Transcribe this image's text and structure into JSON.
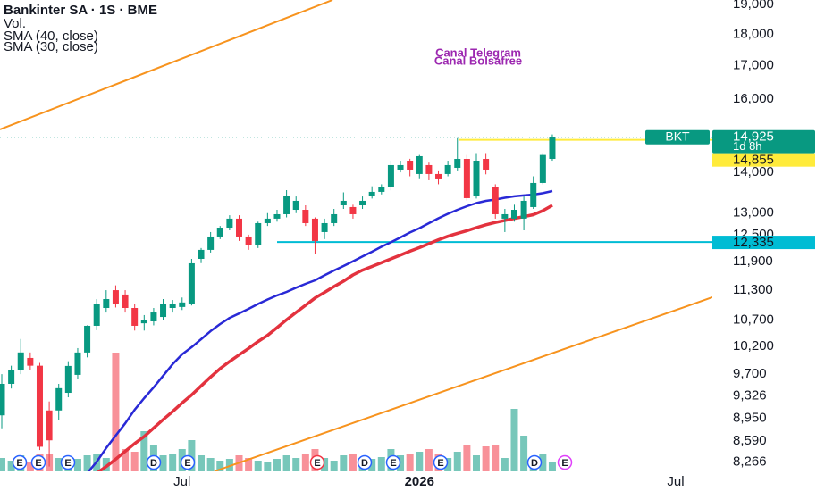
{
  "chart_data": {
    "type": "candlestick",
    "title": "Bankinter SA · 1S · BME",
    "annotations": [
      "Canal Telegram",
      "Canal Bolsafree"
    ],
    "categories": [
      null,
      null,
      null,
      null,
      null,
      null,
      null,
      null,
      null,
      null,
      null,
      null,
      null,
      null,
      null,
      null,
      null,
      null,
      null,
      "Jul",
      null,
      null,
      null,
      null,
      null,
      null,
      null,
      null,
      null,
      null,
      null,
      null,
      null,
      null,
      null,
      null,
      null,
      null,
      null,
      null,
      null,
      null,
      null,
      null,
      "2026",
      null,
      null,
      null,
      null,
      null,
      null,
      null,
      null,
      null,
      null,
      null,
      null,
      null,
      null,
      null,
      null,
      null,
      null,
      null,
      null,
      null,
      null,
      null,
      null,
      null,
      null,
      "Jul"
    ],
    "open": [
      9000,
      9530,
      9770,
      9990,
      9850,
      9080,
      9080,
      9376,
      9687,
      10089,
      10591,
      10940,
      11300,
      11211,
      10940,
      10640,
      10677,
      10763,
      10940,
      10960,
      11029,
      11962,
      12159,
      12458,
      12661,
      12870,
      12458,
      12257,
      12765,
      12870,
      12974,
      13079,
      13079,
      12870,
      12560,
      12765,
      13186,
      13144,
      13186,
      13403,
      13512,
      13621,
      14071,
      14301,
      13958,
      14186,
      13958,
      13958,
      14117,
      14347,
      13403,
      14347,
      13621,
      12870,
      12870,
      12870,
      13144,
      13733,
      14347,
      null,
      null,
      null,
      null,
      null,
      null,
      null,
      null,
      null,
      null,
      null,
      null,
      null
    ],
    "high": [
      9700,
      9850,
      10340,
      10090,
      9900,
      9230,
      9530,
      9930,
      10170,
      10600,
      11119,
      11300,
      11400,
      11300,
      11029,
      10800,
      10940,
      11119,
      11100,
      11150,
      11962,
      12200,
      12560,
      12700,
      12950,
      12950,
      12500,
      12800,
      13000,
      13079,
      13555,
      13400,
      13186,
      12900,
      12870,
      13100,
      13500,
      13200,
      13400,
      13650,
      13700,
      14301,
      14300,
      14350,
      14450,
      14250,
      14050,
      14300,
      14900,
      14450,
      14500,
      14500,
      13700,
      13100,
      13200,
      13400,
      13900,
      14500,
      15000,
      null,
      null,
      null,
      null,
      null,
      null,
      null,
      null,
      null,
      null,
      null,
      null,
      null
    ],
    "low": [
      8790,
      9450,
      9700,
      9770,
      8450,
      8200,
      8930,
      9300,
      9610,
      10000,
      10506,
      10850,
      10950,
      10850,
      10500,
      10500,
      10600,
      10700,
      10850,
      10900,
      10990,
      11870,
      12100,
      12400,
      12600,
      12360,
      12160,
      12200,
      12700,
      12800,
      12900,
      13000,
      12700,
      12060,
      12400,
      12700,
      13100,
      12870,
      13100,
      13350,
      13450,
      13550,
      14000,
      13900,
      13850,
      13800,
      13700,
      13900,
      14050,
      13300,
      13350,
      13950,
      12870,
      12560,
      12800,
      12600,
      13100,
      13700,
      14300,
      null,
      null,
      null,
      null,
      null,
      null,
      null,
      null,
      null,
      null,
      null,
      null,
      null
    ],
    "close": [
      9530,
      9770,
      10090,
      9850,
      8500,
      8600,
      9455,
      9846,
      10089,
      10591,
      11029,
      11119,
      11029,
      10940,
      10591,
      10700,
      10851,
      11029,
      11029,
      11050,
      11866,
      12159,
      12458,
      12661,
      12870,
      12458,
      12257,
      12765,
      12870,
      12974,
      13403,
      13294,
      12765,
      12357,
      12765,
      12974,
      13294,
      12974,
      13294,
      13512,
      13621,
      14186,
      14186,
      14071,
      14418,
      13958,
      13845,
      14186,
      14347,
      13359,
      14301,
      14071,
      12974,
      12974,
      13079,
      13294,
      13733,
      14450,
      14925,
      null,
      null,
      null,
      null,
      null,
      null,
      null,
      null,
      null,
      null,
      null,
      null,
      null
    ],
    "volume": {
      "name": "Vol.",
      "values": [
        15,
        12,
        18,
        10,
        20,
        20,
        15,
        12,
        14,
        18,
        20,
        15,
        133,
        25,
        22,
        45,
        30,
        18,
        20,
        25,
        35,
        18,
        15,
        12,
        14,
        18,
        15,
        12,
        10,
        14,
        18,
        15,
        20,
        25,
        15,
        12,
        18,
        20,
        15,
        14,
        16,
        25,
        18,
        20,
        22,
        25,
        20,
        15,
        22,
        30,
        18,
        28,
        30,
        15,
        70,
        40,
        15,
        20,
        10,
        null,
        null,
        null,
        null,
        null,
        null,
        null,
        null,
        null,
        null,
        null,
        null,
        null
      ]
    },
    "series": [
      {
        "name": "SMA (40, close)",
        "color": "#2929d6",
        "values": [
          null,
          null,
          null,
          null,
          null,
          null,
          null,
          null,
          null,
          8100,
          8272,
          8480,
          8673,
          8870,
          9093,
          9285,
          9470,
          9672,
          9878,
          10056,
          10187,
          10336,
          10489,
          10625,
          10745,
          10833,
          10922,
          11020,
          11110,
          11193,
          11265,
          11350,
          11430,
          11505,
          11610,
          11712,
          11807,
          11910,
          12015,
          12118,
          12228,
          12328,
          12437,
          12550,
          12650,
          12765,
          12880,
          12985,
          13079,
          13165,
          13240,
          13294,
          13326,
          13370,
          13403,
          13425,
          13445,
          13480,
          13533,
          null,
          null,
          null,
          null,
          null,
          null,
          null,
          null,
          null,
          null,
          null,
          null,
          null
        ]
      },
      {
        "name": "SMA (30, close)",
        "color": "#e3323e",
        "values": [
          null,
          null,
          null,
          null,
          null,
          null,
          null,
          null,
          null,
          null,
          8100,
          8200,
          8310,
          8430,
          8550,
          8660,
          8795,
          8930,
          9063,
          9206,
          9340,
          9495,
          9650,
          9798,
          9926,
          10046,
          10165,
          10293,
          10410,
          10557,
          10708,
          10851,
          10994,
          11140,
          11256,
          11375,
          11487,
          11618,
          11720,
          11797,
          11880,
          11962,
          12044,
          12130,
          12210,
          12297,
          12385,
          12464,
          12530,
          12592,
          12661,
          12728,
          12782,
          12828,
          12874,
          12916,
          12962,
          13058,
          13186,
          null,
          null,
          null,
          null,
          null,
          null,
          null,
          null,
          null,
          null,
          null,
          null,
          null
        ]
      }
    ],
    "up_color": "#089981",
    "down_color": "#f23645",
    "ylim": [
      8128,
      19155
    ],
    "log": true,
    "grid": false,
    "yticks": [
      {
        "value": 19000,
        "label": "19,000"
      },
      {
        "value": 18000,
        "label": "18,000"
      },
      {
        "value": 17000,
        "label": "17,000"
      },
      {
        "value": 16000,
        "label": "16,000"
      },
      {
        "value": 14000,
        "label": "14,000"
      },
      {
        "value": 13000,
        "label": "13,000"
      },
      {
        "value": 12500,
        "label": "12,500"
      },
      {
        "value": 11900,
        "label": "11,900"
      },
      {
        "value": 11300,
        "label": "11,300"
      },
      {
        "value": 10700,
        "label": "10,700"
      },
      {
        "value": 10200,
        "label": "10,200"
      },
      {
        "value": 9700,
        "label": "9,700"
      },
      {
        "value": 9326,
        "label": "9,326"
      },
      {
        "value": 8950,
        "label": "8,950"
      },
      {
        "value": 8590,
        "label": "8,590"
      },
      {
        "value": 8266,
        "label": "8,266"
      }
    ],
    "last_price": {
      "ticker": "BKT",
      "value": 14925,
      "label": "14,925",
      "countdown": "1d 8h",
      "color": "#089981"
    },
    "levels": [
      {
        "value": 14855,
        "label": "14,855",
        "color": "#ffeb3b"
      },
      {
        "value": 12335,
        "label": "12,335",
        "color": "#00bcd4"
      }
    ],
    "events": [
      {
        "label": "E",
        "color": "#2962ff"
      },
      {
        "label": "E",
        "color": "#2962ff"
      },
      {
        "label": "E",
        "color": "#2962ff"
      },
      {
        "label": "D",
        "color": "#2962ff"
      },
      {
        "label": "E",
        "color": "#2962ff"
      },
      {
        "label": "E",
        "color": "#f23645"
      },
      {
        "label": "D",
        "color": "#2962ff"
      },
      {
        "label": "E",
        "color": "#2962ff"
      },
      {
        "label": "E",
        "color": "#2962ff"
      },
      {
        "label": "D",
        "color": "#2962ff"
      },
      {
        "label": "E",
        "color": "#e040fb"
      }
    ]
  }
}
